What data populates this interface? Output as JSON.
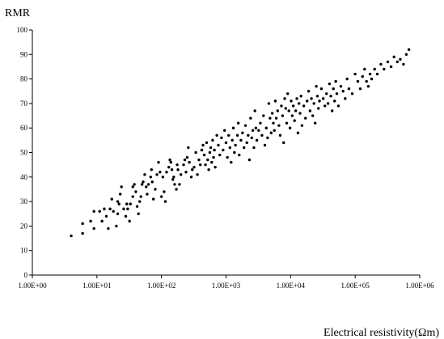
{
  "chart_data": {
    "type": "scatter",
    "ylabel": "RMR",
    "xlabel": "Electrical resistivity(Ωm)",
    "x_scale": "log",
    "xlim": [
      1,
      1000000
    ],
    "ylim": [
      0,
      100
    ],
    "x_ticks": [
      1,
      10,
      100,
      1000,
      10000,
      100000,
      1000000
    ],
    "x_tick_labels": [
      "1.00E+00",
      "1.00E+01",
      "1.00E+02",
      "1.00E+03",
      "1.00E+04",
      "1.00E+05",
      "1.00E+06"
    ],
    "y_ticks": [
      0,
      10,
      20,
      30,
      40,
      50,
      60,
      70,
      80,
      90,
      100
    ],
    "y_tick_labels": [
      "0",
      "10",
      "20",
      "30",
      "40",
      "50",
      "60",
      "70",
      "80",
      "90",
      "100"
    ],
    "grid": false,
    "legend": "none",
    "marker_color": "#000000",
    "series": [
      {
        "points": [
          [
            4,
            16
          ],
          [
            6,
            17
          ],
          [
            6,
            21
          ],
          [
            8,
            22
          ],
          [
            9,
            19
          ],
          [
            9,
            26
          ],
          [
            11,
            26
          ],
          [
            12,
            22
          ],
          [
            13,
            27
          ],
          [
            14,
            24
          ],
          [
            15,
            19
          ],
          [
            16,
            27
          ],
          [
            17,
            31
          ],
          [
            18,
            26
          ],
          [
            20,
            20
          ],
          [
            21,
            25
          ],
          [
            21,
            30
          ],
          [
            22,
            29
          ],
          [
            23,
            33
          ],
          [
            24,
            36
          ],
          [
            26,
            27
          ],
          [
            28,
            24
          ],
          [
            29,
            29
          ],
          [
            30,
            27
          ],
          [
            32,
            22
          ],
          [
            33,
            29
          ],
          [
            36,
            32
          ],
          [
            36,
            36
          ],
          [
            38,
            37
          ],
          [
            40,
            34
          ],
          [
            42,
            28
          ],
          [
            44,
            25
          ],
          [
            46,
            30
          ],
          [
            48,
            32
          ],
          [
            50,
            37
          ],
          [
            52,
            38
          ],
          [
            55,
            41
          ],
          [
            58,
            36
          ],
          [
            60,
            33
          ],
          [
            63,
            37
          ],
          [
            68,
            40
          ],
          [
            70,
            43
          ],
          [
            72,
            38
          ],
          [
            75,
            31
          ],
          [
            80,
            35
          ],
          [
            85,
            41
          ],
          [
            90,
            46
          ],
          [
            95,
            42
          ],
          [
            100,
            32
          ],
          [
            105,
            40
          ],
          [
            110,
            34
          ],
          [
            115,
            30
          ],
          [
            120,
            42
          ],
          [
            130,
            44
          ],
          [
            135,
            47
          ],
          [
            140,
            46
          ],
          [
            145,
            43
          ],
          [
            150,
            39
          ],
          [
            155,
            40
          ],
          [
            160,
            37
          ],
          [
            170,
            35
          ],
          [
            175,
            45
          ],
          [
            180,
            43
          ],
          [
            190,
            37
          ],
          [
            200,
            41
          ],
          [
            220,
            45
          ],
          [
            230,
            47
          ],
          [
            240,
            42
          ],
          [
            250,
            48
          ],
          [
            260,
            52
          ],
          [
            270,
            46
          ],
          [
            290,
            40
          ],
          [
            300,
            43
          ],
          [
            320,
            44
          ],
          [
            340,
            50
          ],
          [
            360,
            41
          ],
          [
            380,
            47
          ],
          [
            400,
            45
          ],
          [
            420,
            51
          ],
          [
            440,
            53
          ],
          [
            460,
            49
          ],
          [
            480,
            45
          ],
          [
            500,
            54
          ],
          [
            520,
            47
          ],
          [
            540,
            43
          ],
          [
            560,
            50
          ],
          [
            580,
            52
          ],
          [
            600,
            46
          ],
          [
            620,
            55
          ],
          [
            640,
            48
          ],
          [
            660,
            51
          ],
          [
            680,
            44
          ],
          [
            720,
            57
          ],
          [
            760,
            53
          ],
          [
            800,
            49
          ],
          [
            850,
            56
          ],
          [
            900,
            51
          ],
          [
            950,
            59
          ],
          [
            1000,
            54
          ],
          [
            1050,
            48
          ],
          [
            1100,
            57
          ],
          [
            1150,
            52
          ],
          [
            1200,
            46
          ],
          [
            1250,
            55
          ],
          [
            1300,
            60
          ],
          [
            1350,
            50
          ],
          [
            1400,
            53
          ],
          [
            1500,
            57
          ],
          [
            1550,
            62
          ],
          [
            1600,
            49
          ],
          [
            1700,
            55
          ],
          [
            1800,
            58
          ],
          [
            1900,
            52
          ],
          [
            2000,
            61
          ],
          [
            2100,
            54
          ],
          [
            2200,
            57
          ],
          [
            2300,
            47
          ],
          [
            2400,
            64
          ],
          [
            2500,
            56
          ],
          [
            2600,
            59
          ],
          [
            2700,
            52
          ],
          [
            2800,
            67
          ],
          [
            2900,
            60
          ],
          [
            3000,
            55
          ],
          [
            3200,
            59
          ],
          [
            3400,
            62
          ],
          [
            3600,
            57
          ],
          [
            3800,
            65
          ],
          [
            4000,
            53
          ],
          [
            4200,
            60
          ],
          [
            4400,
            56
          ],
          [
            4600,
            70
          ],
          [
            4800,
            64
          ],
          [
            5000,
            58
          ],
          [
            5200,
            66
          ],
          [
            5400,
            62
          ],
          [
            5600,
            59
          ],
          [
            5800,
            71
          ],
          [
            6000,
            64
          ],
          [
            6300,
            67
          ],
          [
            6600,
            61
          ],
          [
            6900,
            57
          ],
          [
            7200,
            69
          ],
          [
            7500,
            65
          ],
          [
            7800,
            54
          ],
          [
            8100,
            72
          ],
          [
            8400,
            68
          ],
          [
            8700,
            62
          ],
          [
            9000,
            74
          ],
          [
            9400,
            67
          ],
          [
            9800,
            60
          ],
          [
            10200,
            71
          ],
          [
            10600,
            65
          ],
          [
            11000,
            69
          ],
          [
            11500,
            63
          ],
          [
            12000,
            67
          ],
          [
            12500,
            72
          ],
          [
            13000,
            58
          ],
          [
            13500,
            70
          ],
          [
            14000,
            66
          ],
          [
            14500,
            73
          ],
          [
            15000,
            61
          ],
          [
            16000,
            69
          ],
          [
            17000,
            64
          ],
          [
            18000,
            71
          ],
          [
            19000,
            75
          ],
          [
            20000,
            67
          ],
          [
            21000,
            72
          ],
          [
            22000,
            65
          ],
          [
            23000,
            70
          ],
          [
            24000,
            62
          ],
          [
            25000,
            77
          ],
          [
            26000,
            73
          ],
          [
            27000,
            68
          ],
          [
            28000,
            71
          ],
          [
            30000,
            76
          ],
          [
            32000,
            72
          ],
          [
            34000,
            69
          ],
          [
            36000,
            74
          ],
          [
            38000,
            70
          ],
          [
            40000,
            78
          ],
          [
            42000,
            73
          ],
          [
            44000,
            67
          ],
          [
            46000,
            76
          ],
          [
            48000,
            71
          ],
          [
            50000,
            79
          ],
          [
            52000,
            74
          ],
          [
            55000,
            69
          ],
          [
            60000,
            77
          ],
          [
            65000,
            75
          ],
          [
            70000,
            72
          ],
          [
            75000,
            80
          ],
          [
            80000,
            76
          ],
          [
            90000,
            74
          ],
          [
            100000,
            82
          ],
          [
            110000,
            79
          ],
          [
            120000,
            76
          ],
          [
            130000,
            81
          ],
          [
            140000,
            84
          ],
          [
            150000,
            79
          ],
          [
            160000,
            77
          ],
          [
            170000,
            82
          ],
          [
            180000,
            80
          ],
          [
            200000,
            84
          ],
          [
            220000,
            82
          ],
          [
            250000,
            86
          ],
          [
            280000,
            84
          ],
          [
            320000,
            87
          ],
          [
            360000,
            85
          ],
          [
            400000,
            89
          ],
          [
            450000,
            87
          ],
          [
            500000,
            88
          ],
          [
            560000,
            86
          ],
          [
            620000,
            90
          ],
          [
            680000,
            92
          ]
        ]
      }
    ]
  }
}
